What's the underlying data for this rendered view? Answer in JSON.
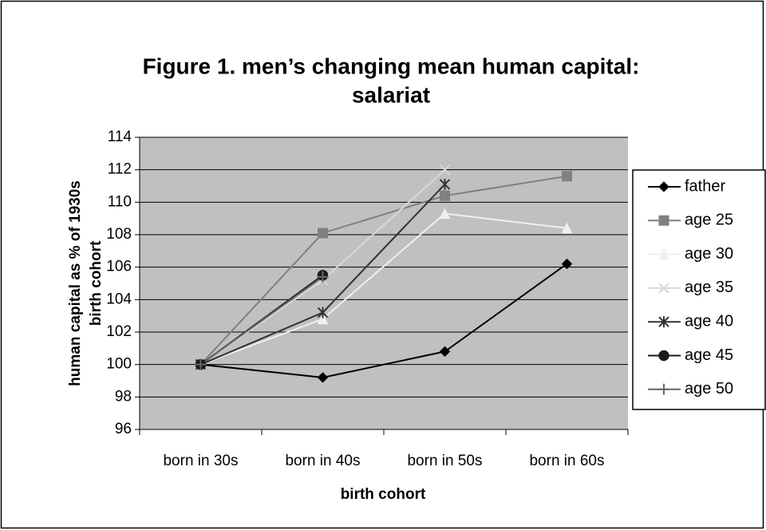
{
  "chart_data": {
    "type": "line",
    "title": [
      "Figure 1.  men’s changing mean human capital:",
      "salariat"
    ],
    "x_label": "birth cohort",
    "y_label": [
      "human capital as % of 1930s",
      "birth cohort"
    ],
    "categories": [
      "born in 30s",
      "born in 40s",
      "born in 50s",
      "born in 60s"
    ],
    "series": [
      {
        "name": "father",
        "color": "#000000",
        "marker": "diamond",
        "values": [
          100,
          99.2,
          100.8,
          106.2
        ]
      },
      {
        "name": "age 25",
        "color": "#808080",
        "marker": "square",
        "values": [
          100,
          108.1,
          110.4,
          111.6
        ]
      },
      {
        "name": "age 30",
        "color": "#f0f0f0",
        "marker": "triangle",
        "values": [
          100,
          102.8,
          109.3,
          108.4
        ]
      },
      {
        "name": "age 35",
        "color": "#d8d8d8",
        "marker": "x",
        "values": [
          100,
          105.2,
          112.0,
          null
        ]
      },
      {
        "name": "age 40",
        "color": "#333333",
        "marker": "asterisk",
        "values": [
          100,
          103.2,
          111.1,
          null
        ]
      },
      {
        "name": "age 45",
        "color": "#1a1a1a",
        "marker": "circle",
        "values": [
          100,
          105.5,
          null,
          null
        ]
      },
      {
        "name": "age 50",
        "color": "#666666",
        "marker": "plus",
        "values": [
          100,
          105.4,
          null,
          null
        ]
      }
    ],
    "ylim": [
      96,
      114
    ],
    "yticks": [
      96,
      98,
      100,
      102,
      104,
      106,
      108,
      110,
      112,
      114
    ],
    "grid": true,
    "legend": "right",
    "plot_background": "#c0c0c0"
  }
}
